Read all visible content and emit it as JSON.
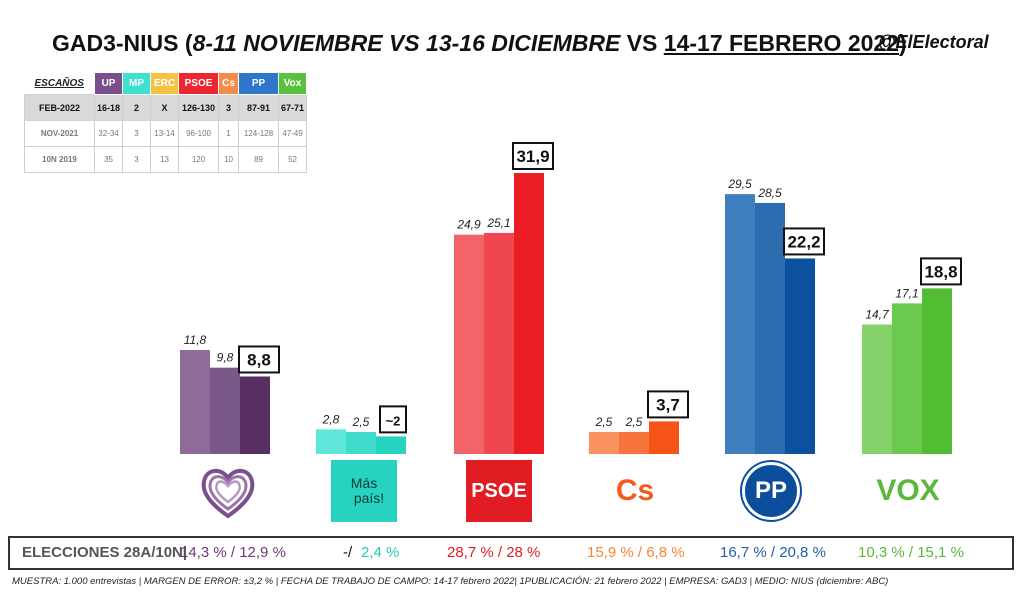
{
  "title": {
    "prefix": "GAD3-NIUS (",
    "italic_part": "8-11 NOVIEMBRE VS 13-16 DICIEMBRE",
    "vs": " VS ",
    "underlined_part": "14-17 FEBRERO 2022",
    "suffix": ")",
    "handle": "@ElElectoral"
  },
  "seats_table": {
    "header_label": "ESCAÑOS",
    "columns": [
      {
        "label": "UP",
        "color": "#7b4f8e"
      },
      {
        "label": "MP",
        "color": "#3ee0d0"
      },
      {
        "label": "ERC",
        "color": "#f5c242"
      },
      {
        "label": "PSOE",
        "color": "#ec2730"
      },
      {
        "label": "Cs",
        "color": "#f58b4c"
      },
      {
        "label": "PP",
        "color": "#2e77c8"
      },
      {
        "label": "Vox",
        "color": "#5ac13e"
      }
    ],
    "rows": [
      {
        "label": "FEB-2022",
        "values": [
          "16-18",
          "2",
          "X",
          "126-130",
          "3",
          "87-91",
          "67-71"
        ],
        "style": "feb"
      },
      {
        "label": "NOV-2021",
        "values": [
          "32-34",
          "3",
          "13-14",
          "96-100",
          "1",
          "124-128",
          "47-49"
        ],
        "style": "old"
      },
      {
        "label": "10N 2019",
        "values": [
          "35",
          "3",
          "13",
          "120",
          "10",
          "89",
          "52"
        ],
        "style": "old"
      }
    ]
  },
  "chart_data": {
    "type": "bar",
    "categories": [
      "UP",
      "Más País",
      "PSOE",
      "Cs",
      "PP",
      "VOX"
    ],
    "series": [
      {
        "values": [
          11.8,
          2.8,
          24.9,
          2.5,
          29.5,
          14.7
        ]
      },
      {
        "values": [
          9.8,
          2.5,
          25.1,
          2.5,
          28.5,
          17.1
        ]
      },
      {
        "values": [
          8.8,
          2.0,
          31.9,
          3.7,
          22.2,
          18.8
        ]
      }
    ],
    "labels": [
      [
        "11,8",
        "9,8",
        "8,8"
      ],
      [
        "2,8",
        "2,5",
        "~2"
      ],
      [
        "24,9",
        "25,1",
        "31,9"
      ],
      [
        "2,5",
        "2,5",
        "3,7"
      ],
      [
        "29,5",
        "28,5",
        "22,2"
      ],
      [
        "14,7",
        "17,1",
        "18,8"
      ]
    ],
    "colors": [
      [
        "#8f6b9a",
        "#7a5887",
        "#582e63"
      ],
      [
        "#5ee6d8",
        "#3fdccb",
        "#26d3c0"
      ],
      [
        "#f2636a",
        "#ef4750",
        "#ec1c24"
      ],
      [
        "#f9925f",
        "#f8743d",
        "#f65316"
      ],
      [
        "#3f7fbf",
        "#2c6db0",
        "#0b51a0"
      ],
      [
        "#85d26b",
        "#6bc94d",
        "#52bc32"
      ]
    ],
    "ylim": [
      0,
      35
    ]
  },
  "logos": [
    {
      "party": "UP",
      "icon": "heart-outline-logo",
      "color": "#7b4f8e"
    },
    {
      "party": "Más País",
      "icon": "mas-pais-logo",
      "text1": "Más",
      "text2": "país!",
      "color": "#26d3c0"
    },
    {
      "party": "PSOE",
      "icon": "psoe-logo",
      "text": "PSOE",
      "color": "#e21c23"
    },
    {
      "party": "Cs",
      "icon": "cs-logo",
      "text": "Cs",
      "color": "#f55a1c"
    },
    {
      "party": "PP",
      "icon": "pp-logo",
      "text": "PP",
      "color": "#0b4f9c"
    },
    {
      "party": "VOX",
      "icon": "vox-logo",
      "text": "VOX",
      "color": "#5ab83b"
    }
  ],
  "results": {
    "label": "ELECCIONES 28A/10N|",
    "items": [
      {
        "text": "14,3 % / 12,9 %",
        "color": "#6b3b78"
      },
      {
        "text": "-/",
        "color": "#111111"
      },
      {
        "text": "2,4 %",
        "color": "#26c9b8"
      },
      {
        "text": "28,7  % / 28 %",
        "color": "#e21c23"
      },
      {
        "text": "15,9 % / 6,8 %",
        "color": "#f5853b"
      },
      {
        "text": "16,7 % / 20,8 %",
        "color": "#1f5fa8"
      },
      {
        "text": "10,3 % / 15,1 %",
        "color": "#5ab83b"
      }
    ]
  },
  "footnote": "MUESTRA: 1.000 entrevistas | MARGEN DE ERROR: ±3,2 % | FECHA DE TRABAJO DE CAMPO: 14-17 febrero 2022| 1PUBLICACIÓN: 21 febrero 2022 | EMPRESA: GAD3 | MEDIO: NIUS (diciembre: ABC)"
}
